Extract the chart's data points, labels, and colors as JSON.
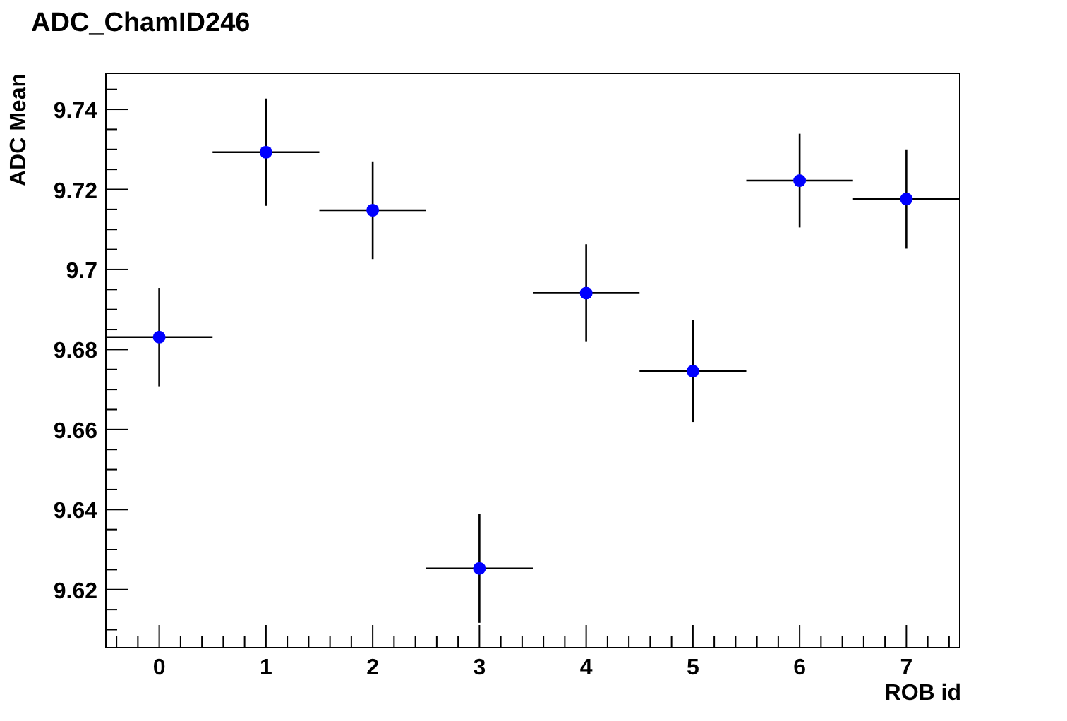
{
  "chart_data": {
    "type": "scatter",
    "title": "ADC_ChamID246",
    "xlabel": "ROB id",
    "ylabel": "ADC Mean",
    "x": [
      0,
      1,
      2,
      3,
      4,
      5,
      6,
      7
    ],
    "series": [
      {
        "color": "#0000ff",
        "values": [
          9.6831,
          9.7293,
          9.7148,
          9.6253,
          9.6941,
          9.6746,
          9.7222,
          9.7176
        ],
        "errors": [
          0.0123,
          0.0134,
          0.0122,
          0.0136,
          0.0122,
          0.0127,
          0.0117,
          0.0124
        ],
        "xerrors": [
          0.5,
          0.5,
          0.5,
          0.5,
          0.5,
          0.5,
          0.5,
          0.5
        ]
      }
    ],
    "xlim": [
      -0.5,
      7.5
    ],
    "xticks": [
      {
        "value": -0.4,
        "label": null
      },
      {
        "value": -0.2,
        "label": null
      },
      0,
      {
        "value": 0.2,
        "label": null
      },
      {
        "value": 0.4,
        "label": null
      },
      {
        "value": 0.6,
        "label": null
      },
      {
        "value": 0.8,
        "label": null
      },
      1,
      {
        "value": 1.2,
        "label": null
      },
      {
        "value": 1.4,
        "label": null
      },
      {
        "value": 1.6,
        "label": null
      },
      {
        "value": 1.8,
        "label": null
      },
      2,
      {
        "value": 2.2,
        "label": null
      },
      {
        "value": 2.4,
        "label": null
      },
      {
        "value": 2.6,
        "label": null
      },
      {
        "value": 2.8,
        "label": null
      },
      3,
      {
        "value": 3.2,
        "label": null
      },
      {
        "value": 3.4,
        "label": null
      },
      {
        "value": 3.6,
        "label": null
      },
      {
        "value": 3.8,
        "label": null
      },
      4,
      {
        "value": 4.2,
        "label": null
      },
      {
        "value": 4.4,
        "label": null
      },
      {
        "value": 4.6,
        "label": null
      },
      {
        "value": 4.8,
        "label": null
      },
      5,
      {
        "value": 5.2,
        "label": null
      },
      {
        "value": 5.4,
        "label": null
      },
      {
        "value": 5.6,
        "label": null
      },
      {
        "value": 5.8,
        "label": null
      },
      6,
      {
        "value": 6.2,
        "label": null
      },
      {
        "value": 6.4,
        "label": null
      },
      {
        "value": 6.6,
        "label": null
      },
      {
        "value": 6.8,
        "label": null
      },
      7,
      {
        "value": 7.2,
        "label": null
      },
      {
        "value": 7.4,
        "label": null
      }
    ],
    "ylim": [
      9.6055,
      9.749
    ],
    "yticks": [
      {
        "value": 9.61,
        "label": null
      },
      {
        "value": 9.615,
        "label": null
      },
      9.62,
      {
        "value": 9.625,
        "label": null
      },
      {
        "value": 9.63,
        "label": null
      },
      {
        "value": 9.635,
        "label": null
      },
      9.64,
      {
        "value": 9.645,
        "label": null
      },
      {
        "value": 9.65,
        "label": null
      },
      {
        "value": 9.655,
        "label": null
      },
      9.66,
      {
        "value": 9.665,
        "label": null
      },
      {
        "value": 9.67,
        "label": null
      },
      {
        "value": 9.675,
        "label": null
      },
      9.68,
      {
        "value": 9.685,
        "label": null
      },
      {
        "value": 9.69,
        "label": null
      },
      {
        "value": 9.695,
        "label": null
      },
      9.7,
      {
        "value": 9.705,
        "label": null
      },
      {
        "value": 9.71,
        "label": null
      },
      {
        "value": 9.715,
        "label": null
      },
      9.72,
      {
        "value": 9.725,
        "label": null
      },
      {
        "value": 9.73,
        "label": null
      },
      {
        "value": 9.735,
        "label": null
      },
      9.74,
      {
        "value": 9.745,
        "label": null
      }
    ],
    "grid": false,
    "marker": "circle"
  }
}
